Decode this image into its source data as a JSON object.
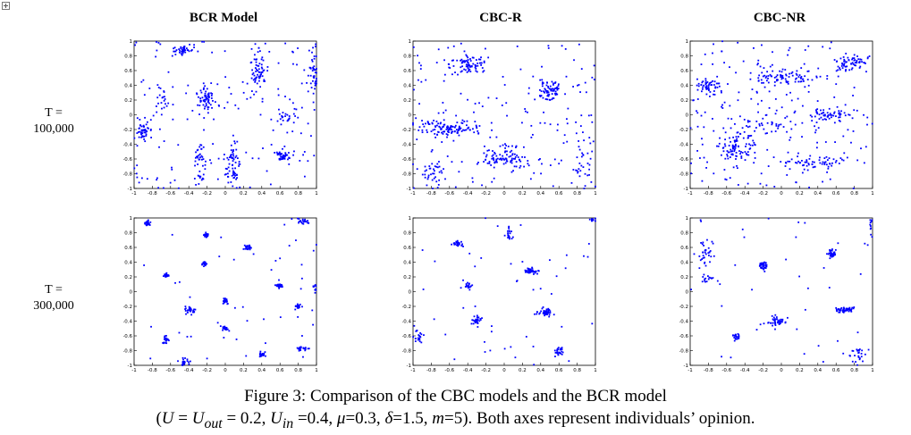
{
  "column_titles": [
    "BCR Model",
    "CBC-R",
    "CBC-NR"
  ],
  "row_labels": [
    {
      "line1": "T =",
      "line2": "100,000"
    },
    {
      "line1": "T =",
      "line2": "300,000"
    }
  ],
  "caption": {
    "line1": "Figure 3: Comparison of the CBC models and the BCR model",
    "line2_parts": [
      "(",
      "U",
      " = ",
      "U",
      "out",
      " = 0.2, ",
      "U",
      "in",
      " =0.4, ",
      "μ",
      "=0.3, ",
      "δ",
      "=1.5, ",
      "m",
      "=5). Both axes represent individuals’ opinion."
    ]
  },
  "colors": {
    "points": "#0000ff",
    "axis": "#000000"
  },
  "chart_data": [
    {
      "type": "scatter",
      "panel": "BCR Model, T = 100,000",
      "xlim": [
        -1,
        1
      ],
      "ylim": [
        -1,
        1
      ],
      "xticks": [
        "-1",
        "-0.8",
        "-0.6",
        "-0.4",
        "-0.2",
        "0",
        "0.2",
        "0.4",
        "0.6",
        "0.8",
        "1"
      ],
      "yticks": [
        "-1",
        "-0.8",
        "-0.6",
        "-0.4",
        "-0.2",
        "0",
        "0.2",
        "0.4",
        "0.6",
        "0.8",
        "1"
      ],
      "clusters": [
        {
          "cx": -0.47,
          "cy": 0.88,
          "sx": 0.06,
          "sy": 0.03,
          "n": 40
        },
        {
          "cx": -0.9,
          "cy": -0.23,
          "sx": 0.03,
          "sy": 0.07,
          "n": 45
        },
        {
          "cx": -0.2,
          "cy": 0.22,
          "sx": 0.04,
          "sy": 0.09,
          "n": 60
        },
        {
          "cx": 0.35,
          "cy": 0.55,
          "sx": 0.05,
          "sy": 0.2,
          "n": 70
        },
        {
          "cx": 0.08,
          "cy": -0.7,
          "sx": 0.04,
          "sy": 0.15,
          "n": 60
        },
        {
          "cx": 0.62,
          "cy": -0.57,
          "sx": 0.05,
          "sy": 0.04,
          "n": 40
        },
        {
          "cx": 0.97,
          "cy": 0.5,
          "sx": 0.03,
          "sy": 0.2,
          "n": 40
        },
        {
          "cx": -0.28,
          "cy": -0.68,
          "sx": 0.03,
          "sy": 0.18,
          "n": 40
        },
        {
          "cx": 0.7,
          "cy": -0.05,
          "sx": 0.06,
          "sy": 0.07,
          "n": 25
        },
        {
          "cx": -0.65,
          "cy": 0.2,
          "sx": 0.06,
          "sy": 0.15,
          "n": 20
        }
      ],
      "scatter_n": 140
    },
    {
      "type": "scatter",
      "panel": "CBC-R, T = 100,000",
      "xlim": [
        -1,
        1
      ],
      "ylim": [
        -1,
        1
      ],
      "xticks": [
        "-1",
        "-0.8",
        "-0.6",
        "-0.4",
        "-0.2",
        "0",
        "0.2",
        "0.4",
        "0.6",
        "0.8",
        "1"
      ],
      "yticks": [
        "-1",
        "-0.8",
        "-0.6",
        "-0.4",
        "-0.2",
        "0",
        "0.2",
        "0.4",
        "0.6",
        "0.8",
        "1"
      ],
      "clusters": [
        {
          "cx": -0.4,
          "cy": 0.68,
          "sx": 0.1,
          "sy": 0.06,
          "n": 70
        },
        {
          "cx": -0.6,
          "cy": -0.18,
          "sx": 0.18,
          "sy": 0.06,
          "n": 110
        },
        {
          "cx": 0.5,
          "cy": 0.32,
          "sx": 0.07,
          "sy": 0.07,
          "n": 70
        },
        {
          "cx": 0.0,
          "cy": -0.58,
          "sx": 0.15,
          "sy": 0.07,
          "n": 90
        },
        {
          "cx": 0.85,
          "cy": -0.6,
          "sx": 0.05,
          "sy": 0.2,
          "n": 30
        },
        {
          "cx": -0.8,
          "cy": -0.75,
          "sx": 0.08,
          "sy": 0.1,
          "n": 30
        }
      ],
      "scatter_n": 170
    },
    {
      "type": "scatter",
      "panel": "CBC-NR, T = 100,000",
      "xlim": [
        -1,
        1
      ],
      "ylim": [
        -1,
        1
      ],
      "xticks": [
        "-1",
        "-0.8",
        "-0.6",
        "-0.4",
        "-0.2",
        "0",
        "0.2",
        "0.4",
        "0.6",
        "0.8",
        "1"
      ],
      "yticks": [
        "-1",
        "-0.8",
        "-0.6",
        "-0.4",
        "-0.2",
        "0",
        "0.2",
        "0.4",
        "0.6",
        "0.8",
        "1"
      ],
      "clusters": [
        {
          "cx": -0.8,
          "cy": 0.38,
          "sx": 0.07,
          "sy": 0.05,
          "n": 50
        },
        {
          "cx": 0.05,
          "cy": 0.53,
          "sx": 0.2,
          "sy": 0.06,
          "n": 80
        },
        {
          "cx": 0.75,
          "cy": 0.7,
          "sx": 0.1,
          "sy": 0.06,
          "n": 60
        },
        {
          "cx": -0.5,
          "cy": -0.45,
          "sx": 0.1,
          "sy": 0.1,
          "n": 90
        },
        {
          "cx": 0.5,
          "cy": -0.02,
          "sx": 0.15,
          "sy": 0.05,
          "n": 60
        },
        {
          "cx": 0.35,
          "cy": -0.65,
          "sx": 0.2,
          "sy": 0.05,
          "n": 60
        },
        {
          "cx": -0.2,
          "cy": -0.15,
          "sx": 0.2,
          "sy": 0.08,
          "n": 40
        }
      ],
      "scatter_n": 180
    },
    {
      "type": "scatter",
      "panel": "BCR Model, T = 300,000",
      "xlim": [
        -1,
        1
      ],
      "ylim": [
        -1,
        1
      ],
      "xticks": [
        "-1",
        "-0.8",
        "-0.6",
        "-0.4",
        "-0.2",
        "0",
        "0.2",
        "0.4",
        "0.6",
        "0.8",
        "1"
      ],
      "yticks": [
        "-1",
        "-0.8",
        "-0.6",
        "-0.4",
        "-0.2",
        "0",
        "0.2",
        "0.4",
        "0.6",
        "0.8",
        "1"
      ],
      "clusters": [
        {
          "cx": -0.85,
          "cy": 0.93,
          "sx": 0.015,
          "sy": 0.02,
          "n": 25
        },
        {
          "cx": -0.2,
          "cy": 0.77,
          "sx": 0.015,
          "sy": 0.015,
          "n": 25
        },
        {
          "cx": 0.25,
          "cy": 0.6,
          "sx": 0.015,
          "sy": 0.015,
          "n": 25
        },
        {
          "cx": -0.23,
          "cy": 0.38,
          "sx": 0.015,
          "sy": 0.015,
          "n": 20
        },
        {
          "cx": -0.65,
          "cy": 0.22,
          "sx": 0.015,
          "sy": 0.015,
          "n": 20
        },
        {
          "cx": 0.6,
          "cy": 0.08,
          "sx": 0.02,
          "sy": 0.015,
          "n": 25
        },
        {
          "cx": 0.0,
          "cy": -0.12,
          "sx": 0.02,
          "sy": 0.025,
          "n": 25
        },
        {
          "cx": -0.38,
          "cy": -0.25,
          "sx": 0.03,
          "sy": 0.025,
          "n": 30
        },
        {
          "cx": 0.8,
          "cy": -0.2,
          "sx": 0.02,
          "sy": 0.02,
          "n": 20
        },
        {
          "cx": 0.0,
          "cy": -0.5,
          "sx": 0.015,
          "sy": 0.015,
          "n": 20
        },
        {
          "cx": -0.65,
          "cy": -0.65,
          "sx": 0.02,
          "sy": 0.03,
          "n": 20
        },
        {
          "cx": 0.85,
          "cy": -0.77,
          "sx": 0.04,
          "sy": 0.015,
          "n": 25
        },
        {
          "cx": 0.4,
          "cy": -0.85,
          "sx": 0.015,
          "sy": 0.03,
          "n": 20
        },
        {
          "cx": -0.45,
          "cy": -0.95,
          "sx": 0.03,
          "sy": 0.02,
          "n": 20
        },
        {
          "cx": 0.85,
          "cy": 0.95,
          "sx": 0.04,
          "sy": 0.02,
          "n": 20
        },
        {
          "cx": 0.98,
          "cy": 0.05,
          "sx": 0.01,
          "sy": 0.05,
          "n": 10
        }
      ],
      "scatter_n": 45
    },
    {
      "type": "scatter",
      "panel": "CBC-R, T = 300,000",
      "xlim": [
        -1,
        1
      ],
      "ylim": [
        -1,
        1
      ],
      "xticks": [
        "-1",
        "-0.8",
        "-0.6",
        "-0.4",
        "-0.2",
        "0",
        "0.2",
        "0.4",
        "0.6",
        "0.8",
        "1"
      ],
      "yticks": [
        "-1",
        "-0.8",
        "-0.6",
        "-0.4",
        "-0.2",
        "0",
        "0.2",
        "0.4",
        "0.6",
        "0.8",
        "1"
      ],
      "clusters": [
        {
          "cx": -0.5,
          "cy": 0.65,
          "sx": 0.03,
          "sy": 0.02,
          "n": 25
        },
        {
          "cx": 0.05,
          "cy": 0.78,
          "sx": 0.02,
          "sy": 0.04,
          "n": 20
        },
        {
          "cx": 0.3,
          "cy": 0.28,
          "sx": 0.04,
          "sy": 0.02,
          "n": 40
        },
        {
          "cx": -0.4,
          "cy": 0.08,
          "sx": 0.03,
          "sy": 0.02,
          "n": 20
        },
        {
          "cx": -0.3,
          "cy": -0.4,
          "sx": 0.02,
          "sy": 0.03,
          "n": 35
        },
        {
          "cx": 0.45,
          "cy": -0.28,
          "sx": 0.04,
          "sy": 0.025,
          "n": 45
        },
        {
          "cx": 0.6,
          "cy": -0.82,
          "sx": 0.03,
          "sy": 0.03,
          "n": 25
        },
        {
          "cx": -0.95,
          "cy": -0.6,
          "sx": 0.03,
          "sy": 0.05,
          "n": 20
        },
        {
          "cx": 0.97,
          "cy": 0.97,
          "sx": 0.03,
          "sy": 0.01,
          "n": 10
        }
      ],
      "scatter_n": 45
    },
    {
      "type": "scatter",
      "panel": "CBC-NR, T = 300,000",
      "xlim": [
        -1,
        1
      ],
      "ylim": [
        -1,
        1
      ],
      "xticks": [
        "-1",
        "-0.8",
        "-0.6",
        "-0.4",
        "-0.2",
        "0",
        "0.2",
        "0.4",
        "0.6",
        "0.8",
        "1"
      ],
      "yticks": [
        "-1",
        "-0.8",
        "-0.6",
        "-0.4",
        "-0.2",
        "0",
        "0.2",
        "0.4",
        "0.6",
        "0.8",
        "1"
      ],
      "clusters": [
        {
          "cx": -0.82,
          "cy": 0.55,
          "sx": 0.05,
          "sy": 0.12,
          "n": 35
        },
        {
          "cx": -0.82,
          "cy": 0.18,
          "sx": 0.05,
          "sy": 0.03,
          "n": 15
        },
        {
          "cx": -0.2,
          "cy": 0.35,
          "sx": 0.02,
          "sy": 0.03,
          "n": 35
        },
        {
          "cx": 0.55,
          "cy": 0.52,
          "sx": 0.02,
          "sy": 0.03,
          "n": 35
        },
        {
          "cx": -0.05,
          "cy": -0.4,
          "sx": 0.05,
          "sy": 0.04,
          "n": 40
        },
        {
          "cx": 0.7,
          "cy": -0.25,
          "sx": 0.05,
          "sy": 0.025,
          "n": 45
        },
        {
          "cx": -0.5,
          "cy": -0.6,
          "sx": 0.02,
          "sy": 0.03,
          "n": 20
        },
        {
          "cx": 0.85,
          "cy": -0.85,
          "sx": 0.05,
          "sy": 0.06,
          "n": 25
        },
        {
          "cx": 0.98,
          "cy": 0.9,
          "sx": 0.01,
          "sy": 0.05,
          "n": 8
        }
      ],
      "scatter_n": 40
    }
  ]
}
